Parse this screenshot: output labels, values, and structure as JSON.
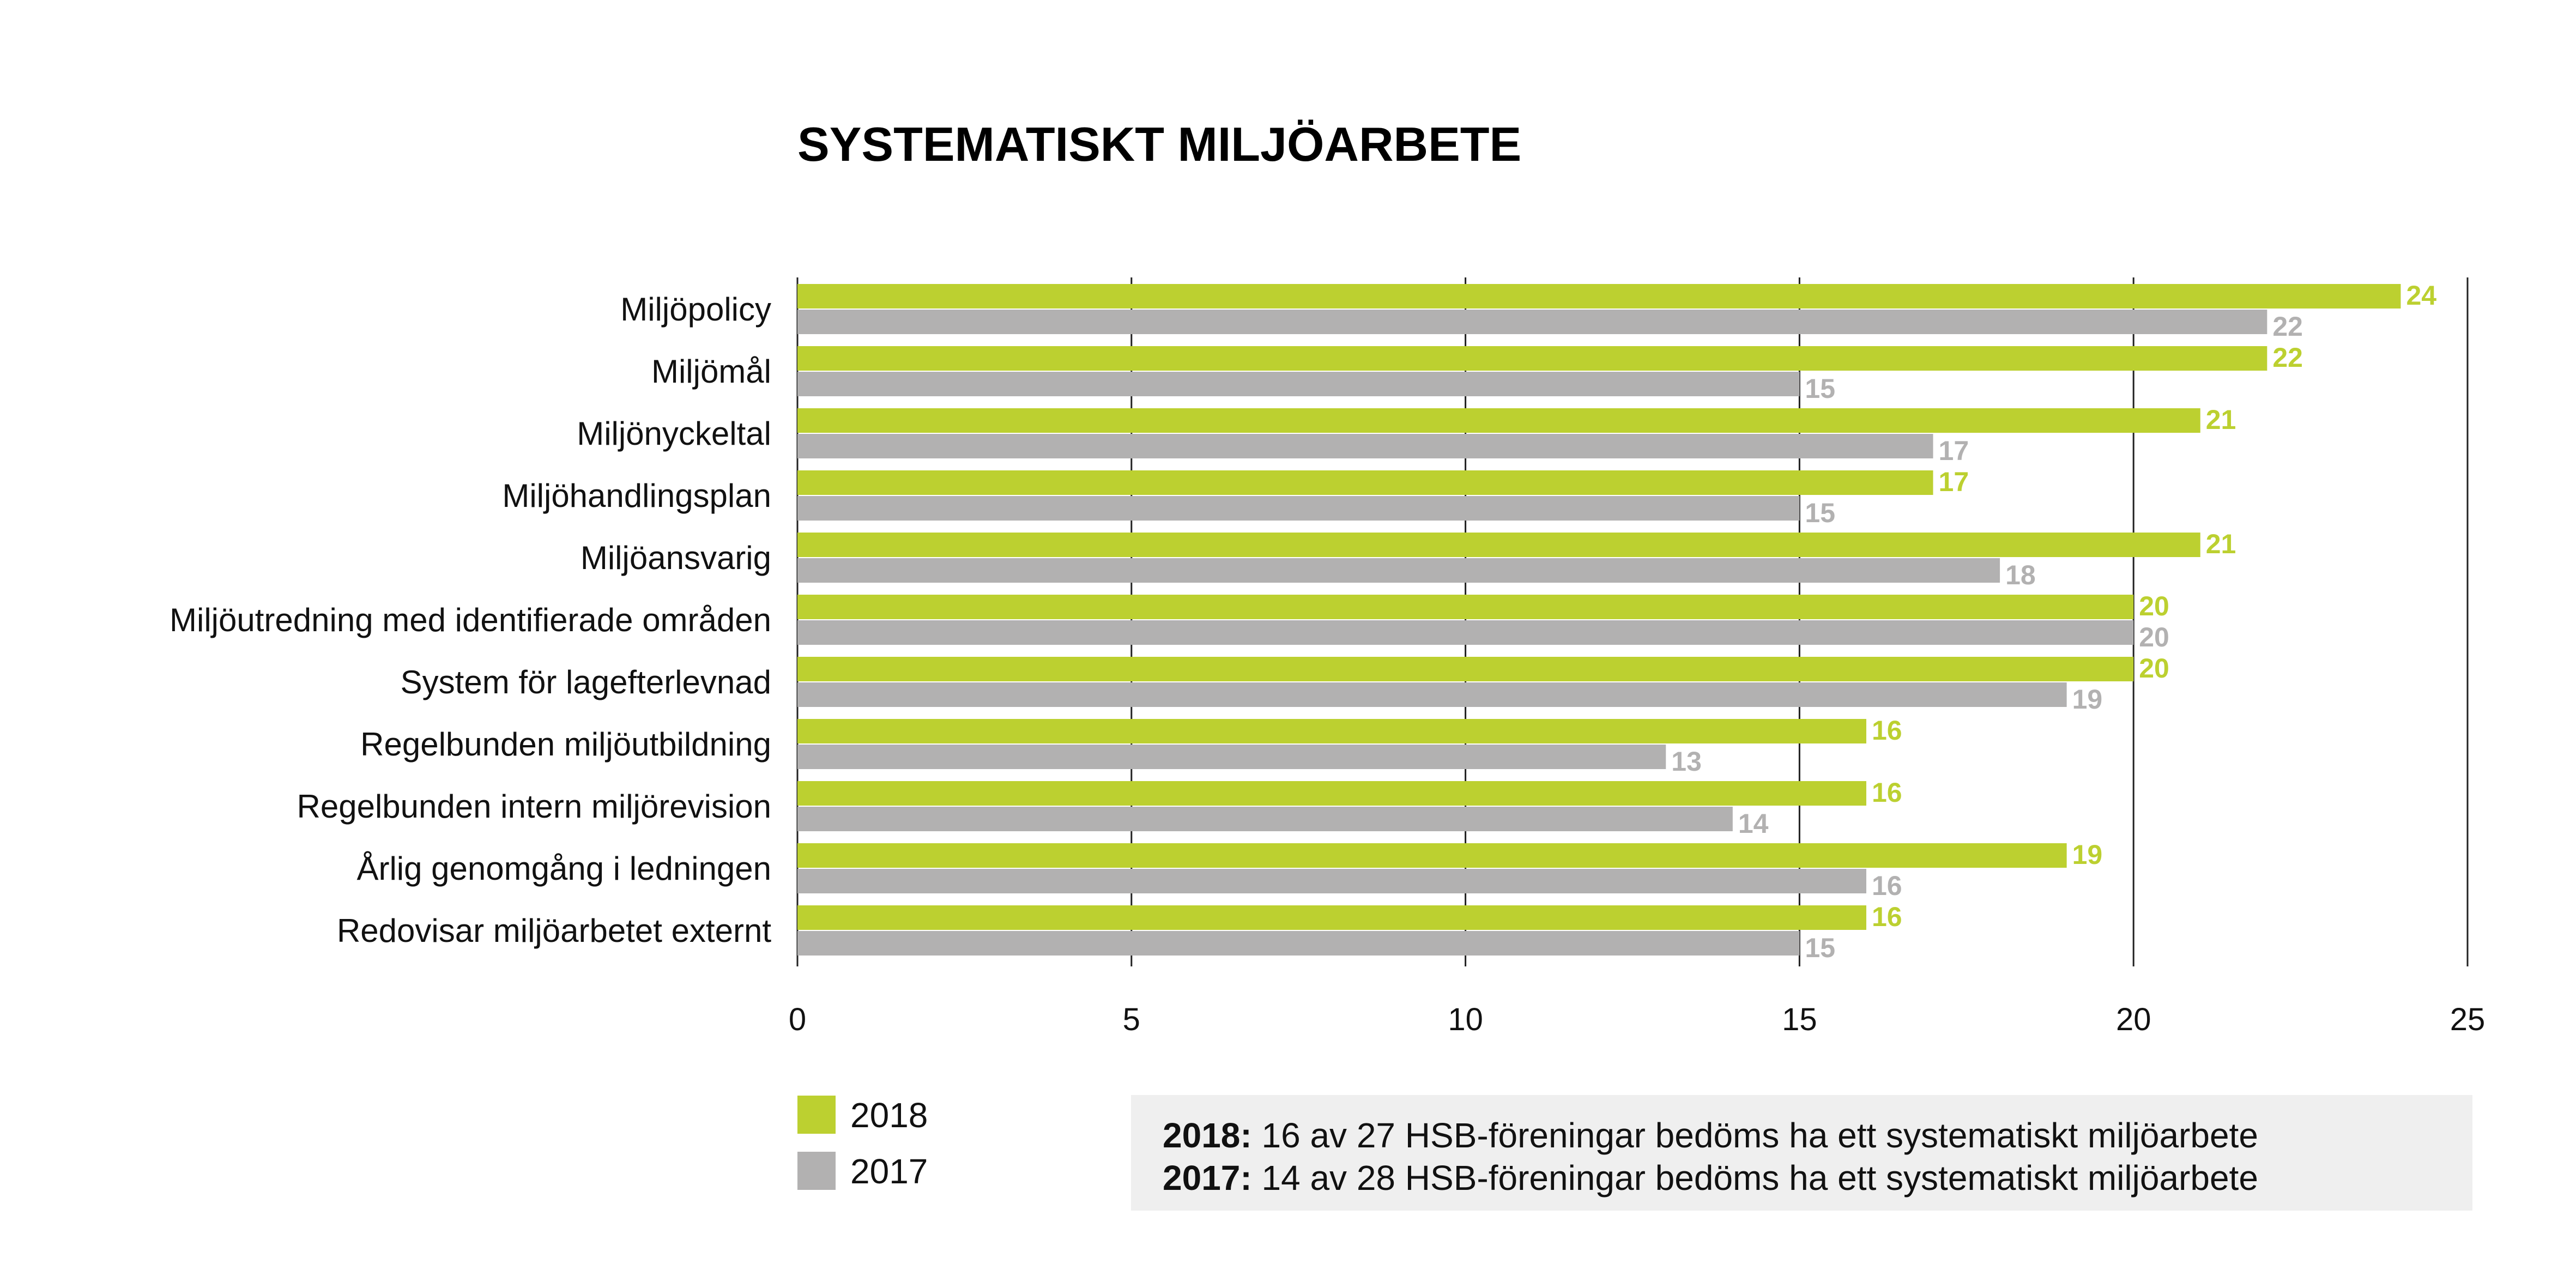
{
  "chart_data": {
    "type": "bar",
    "orientation": "horizontal",
    "title": "SYSTEMATISKT MILJÖARBETE",
    "categories": [
      "Miljöpolicy",
      "Miljömål",
      "Miljönyckeltal",
      "Miljöhandlingsplan",
      "Miljöansvarig",
      "Miljöutredning med identifierade områden",
      "System för lagefterlevnad",
      "Regelbunden miljöutbildning",
      "Regelbunden intern miljörevision",
      "Årlig genomgång i ledningen",
      "Redovisar miljöarbetet externt"
    ],
    "series": [
      {
        "name": "2018",
        "color": "#bcd030",
        "values": [
          24,
          22,
          21,
          17,
          21,
          20,
          20,
          16,
          16,
          19,
          16
        ]
      },
      {
        "name": "2017",
        "color": "#b2b1b1",
        "values": [
          22,
          15,
          17,
          15,
          18,
          20,
          19,
          13,
          14,
          16,
          15
        ]
      }
    ],
    "xlim": [
      0,
      25
    ],
    "xticks": [
      0,
      5,
      10,
      15,
      20,
      25
    ],
    "xlabel": "",
    "ylabel": "",
    "grid": true,
    "legend": "bottom-left"
  },
  "note": {
    "lines": [
      {
        "year": "2018:",
        "text": " 16 av 27 HSB-föreningar bedöms ha ett systematiskt miljöarbete"
      },
      {
        "year": "2017:",
        "text": " 14 av 28 HSB-föreningar bedöms ha ett systematiskt miljöarbete"
      }
    ]
  }
}
